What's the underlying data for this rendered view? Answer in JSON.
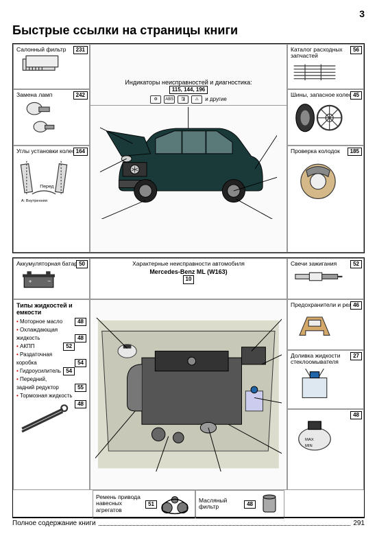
{
  "page_number": "3",
  "title": "Быстрые ссылки на страницы книги",
  "footer": {
    "label": "Полное содержание книги",
    "page": "291"
  },
  "top": {
    "left": [
      {
        "title": "Салонный фильтр",
        "page": "231"
      },
      {
        "title": "Замена ламп",
        "page": "242"
      },
      {
        "title": "Углы установки колес",
        "page": "164"
      }
    ],
    "center": {
      "title": "Индикаторы неисправностей и диагностика:",
      "pages": "115, 144, 196",
      "suffix": "и другие"
    },
    "right": [
      {
        "title": "Каталог расходных запчастей",
        "page": "56"
      },
      {
        "title": "Шины, запасное колесо",
        "page": "45"
      },
      {
        "title": "Проверка колодок",
        "page": "185"
      }
    ]
  },
  "bottom": {
    "left_top": {
      "title": "Аккумуляторная батарея",
      "page": "50"
    },
    "center_top": {
      "title": "Характерные неисправности автомобиля",
      "model": "Mercedes-Benz ML (W163)",
      "page": "10"
    },
    "right": [
      {
        "title": "Свечи зажигания",
        "page": "52"
      },
      {
        "title": "Предохранители и реле",
        "page": "46"
      },
      {
        "title": "Доливка жидкости стеклоомывателя",
        "page": "27"
      },
      {
        "title": "",
        "page": "48"
      }
    ],
    "fluids": {
      "header": "Типы жидкостей и емкости",
      "items": [
        {
          "label": "Моторное масло",
          "page": "48"
        },
        {
          "label": "Охлаждающая жидкость",
          "page": "48"
        },
        {
          "label": "АКПП",
          "page": "52"
        },
        {
          "label": "Раздаточная коробка",
          "page": "54"
        },
        {
          "label": "Гидроусилитель",
          "page": "54"
        },
        {
          "label": "Передний, задний редуктор",
          "page": "55"
        },
        {
          "label": "Тормозная жидкость",
          "page": "48"
        }
      ]
    },
    "belt": {
      "title": "Ремень привода навесных агрегатов",
      "page": "51"
    },
    "oilfilter": {
      "title": "Масляный фильтр",
      "page": "48"
    },
    "angle_caption": "А: Внутренняя\nВ: Внешняя",
    "angle_front": "Перед"
  },
  "colors": {
    "car_body": "#1a3a3a",
    "car_dark": "#0a1818",
    "wheel": "#222",
    "engine_bg": "#d4d4c8",
    "engine_block": "#888",
    "engine_cover": "#333",
    "belt_pulley": "#666",
    "filter": "#bbb",
    "battery": "#555",
    "bulb": "#aaa",
    "plug": "#999",
    "fuse": "#c49a6c",
    "brake": "#c0a068"
  }
}
